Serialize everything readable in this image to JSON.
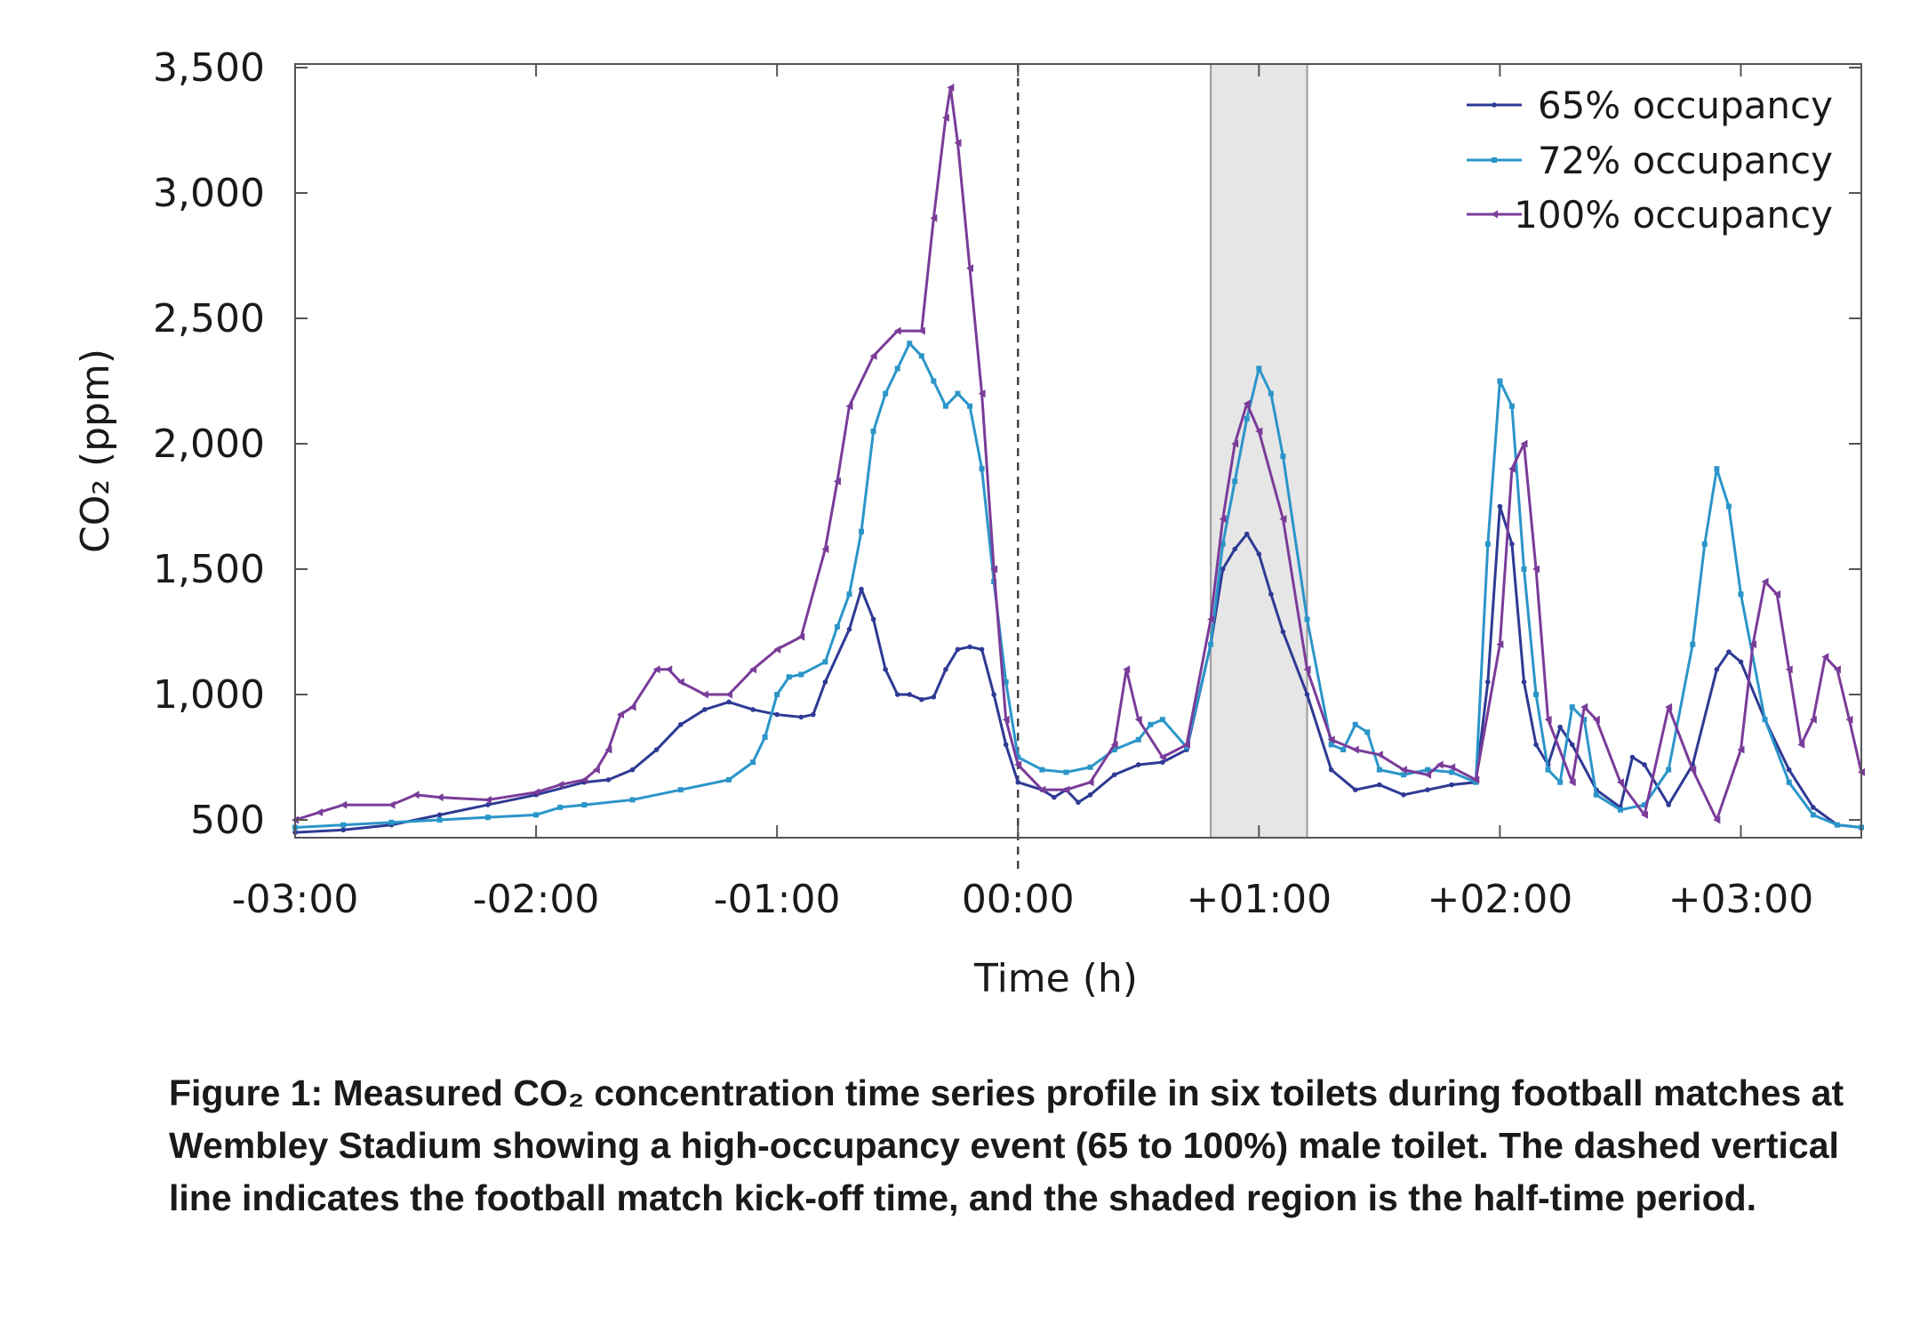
{
  "chart_data": {
    "type": "line",
    "xlabel": "Time (h)",
    "ylabel": "CO₂ (ppm)",
    "xlim": [
      -3.0,
      3.5
    ],
    "ylim": [
      450,
      3500
    ],
    "x_ticks": [
      {
        "v": -3,
        "label": "-03:00"
      },
      {
        "v": -2,
        "label": "-02:00"
      },
      {
        "v": -1,
        "label": "-01:00"
      },
      {
        "v": 0,
        "label": "00:00"
      },
      {
        "v": 1,
        "label": "+01:00"
      },
      {
        "v": 2,
        "label": "+02:00"
      },
      {
        "v": 3,
        "label": "+03:00"
      }
    ],
    "y_ticks": [
      {
        "v": 500,
        "label": "500"
      },
      {
        "v": 1000,
        "label": "1,000"
      },
      {
        "v": 1500,
        "label": "1,500"
      },
      {
        "v": 2000,
        "label": "2,000"
      },
      {
        "v": 2500,
        "label": "2,500"
      },
      {
        "v": 3000,
        "label": "3,000"
      },
      {
        "v": 3500,
        "label": "3,500"
      }
    ],
    "kickoff_x": 0,
    "halftime_region": [
      0.8,
      1.2
    ],
    "legend_position": "top-right",
    "series": [
      {
        "name": "65% occupancy",
        "color": "#2e3a94",
        "marker": "dot",
        "points": [
          [
            -3.0,
            450
          ],
          [
            -2.8,
            460
          ],
          [
            -2.6,
            480
          ],
          [
            -2.4,
            520
          ],
          [
            -2.2,
            560
          ],
          [
            -2.0,
            600
          ],
          [
            -1.8,
            650
          ],
          [
            -1.7,
            660
          ],
          [
            -1.6,
            700
          ],
          [
            -1.5,
            780
          ],
          [
            -1.4,
            880
          ],
          [
            -1.3,
            940
          ],
          [
            -1.2,
            970
          ],
          [
            -1.1,
            940
          ],
          [
            -1.0,
            920
          ],
          [
            -0.9,
            910
          ],
          [
            -0.85,
            920
          ],
          [
            -0.8,
            1050
          ],
          [
            -0.7,
            1260
          ],
          [
            -0.65,
            1420
          ],
          [
            -0.6,
            1300
          ],
          [
            -0.55,
            1100
          ],
          [
            -0.5,
            1000
          ],
          [
            -0.45,
            1000
          ],
          [
            -0.4,
            980
          ],
          [
            -0.35,
            990
          ],
          [
            -0.3,
            1100
          ],
          [
            -0.25,
            1180
          ],
          [
            -0.2,
            1190
          ],
          [
            -0.15,
            1180
          ],
          [
            -0.1,
            1000
          ],
          [
            -0.05,
            800
          ],
          [
            0.0,
            650
          ],
          [
            0.1,
            620
          ],
          [
            0.15,
            590
          ],
          [
            0.2,
            620
          ],
          [
            0.25,
            570
          ],
          [
            0.3,
            600
          ],
          [
            0.4,
            680
          ],
          [
            0.5,
            720
          ],
          [
            0.6,
            730
          ],
          [
            0.7,
            780
          ],
          [
            0.8,
            1200
          ],
          [
            0.85,
            1500
          ],
          [
            0.9,
            1580
          ],
          [
            0.95,
            1640
          ],
          [
            1.0,
            1560
          ],
          [
            1.05,
            1400
          ],
          [
            1.1,
            1250
          ],
          [
            1.2,
            1000
          ],
          [
            1.3,
            700
          ],
          [
            1.4,
            620
          ],
          [
            1.5,
            640
          ],
          [
            1.6,
            600
          ],
          [
            1.7,
            620
          ],
          [
            1.8,
            640
          ],
          [
            1.9,
            650
          ],
          [
            1.95,
            1050
          ],
          [
            2.0,
            1750
          ],
          [
            2.05,
            1600
          ],
          [
            2.1,
            1050
          ],
          [
            2.15,
            800
          ],
          [
            2.2,
            720
          ],
          [
            2.25,
            870
          ],
          [
            2.3,
            800
          ],
          [
            2.4,
            620
          ],
          [
            2.5,
            550
          ],
          [
            2.55,
            750
          ],
          [
            2.6,
            720
          ],
          [
            2.7,
            560
          ],
          [
            2.8,
            720
          ],
          [
            2.9,
            1100
          ],
          [
            2.95,
            1170
          ],
          [
            3.0,
            1130
          ],
          [
            3.1,
            900
          ],
          [
            3.2,
            700
          ],
          [
            3.3,
            550
          ],
          [
            3.4,
            480
          ],
          [
            3.5,
            470
          ]
        ]
      },
      {
        "name": "72% occupancy",
        "color": "#2b95c9",
        "marker": "square",
        "points": [
          [
            -3.0,
            470
          ],
          [
            -2.8,
            480
          ],
          [
            -2.6,
            490
          ],
          [
            -2.4,
            500
          ],
          [
            -2.2,
            510
          ],
          [
            -2.0,
            520
          ],
          [
            -1.9,
            550
          ],
          [
            -1.8,
            560
          ],
          [
            -1.6,
            580
          ],
          [
            -1.4,
            620
          ],
          [
            -1.2,
            660
          ],
          [
            -1.1,
            730
          ],
          [
            -1.05,
            830
          ],
          [
            -1.0,
            1000
          ],
          [
            -0.95,
            1070
          ],
          [
            -0.9,
            1080
          ],
          [
            -0.8,
            1130
          ],
          [
            -0.75,
            1270
          ],
          [
            -0.7,
            1400
          ],
          [
            -0.65,
            1650
          ],
          [
            -0.6,
            2050
          ],
          [
            -0.55,
            2200
          ],
          [
            -0.5,
            2300
          ],
          [
            -0.45,
            2400
          ],
          [
            -0.4,
            2350
          ],
          [
            -0.35,
            2250
          ],
          [
            -0.3,
            2150
          ],
          [
            -0.25,
            2200
          ],
          [
            -0.2,
            2150
          ],
          [
            -0.15,
            1900
          ],
          [
            -0.1,
            1450
          ],
          [
            -0.05,
            1050
          ],
          [
            0.0,
            750
          ],
          [
            0.1,
            700
          ],
          [
            0.2,
            690
          ],
          [
            0.3,
            710
          ],
          [
            0.4,
            780
          ],
          [
            0.5,
            820
          ],
          [
            0.55,
            880
          ],
          [
            0.6,
            900
          ],
          [
            0.7,
            790
          ],
          [
            0.8,
            1200
          ],
          [
            0.85,
            1600
          ],
          [
            0.9,
            1850
          ],
          [
            0.95,
            2100
          ],
          [
            1.0,
            2300
          ],
          [
            1.05,
            2200
          ],
          [
            1.1,
            1950
          ],
          [
            1.2,
            1300
          ],
          [
            1.3,
            800
          ],
          [
            1.35,
            780
          ],
          [
            1.4,
            880
          ],
          [
            1.45,
            850
          ],
          [
            1.5,
            700
          ],
          [
            1.6,
            680
          ],
          [
            1.7,
            700
          ],
          [
            1.8,
            690
          ],
          [
            1.9,
            650
          ],
          [
            1.95,
            1600
          ],
          [
            2.0,
            2250
          ],
          [
            2.05,
            2150
          ],
          [
            2.1,
            1500
          ],
          [
            2.15,
            1000
          ],
          [
            2.2,
            700
          ],
          [
            2.25,
            650
          ],
          [
            2.3,
            950
          ],
          [
            2.35,
            900
          ],
          [
            2.4,
            600
          ],
          [
            2.5,
            540
          ],
          [
            2.6,
            560
          ],
          [
            2.7,
            700
          ],
          [
            2.8,
            1200
          ],
          [
            2.85,
            1600
          ],
          [
            2.9,
            1900
          ],
          [
            2.95,
            1750
          ],
          [
            3.0,
            1400
          ],
          [
            3.1,
            900
          ],
          [
            3.2,
            650
          ],
          [
            3.3,
            520
          ],
          [
            3.4,
            480
          ],
          [
            3.5,
            470
          ]
        ]
      },
      {
        "name": "100% occupancy",
        "color": "#7a3c99",
        "marker": "triangle",
        "points": [
          [
            -3.0,
            500
          ],
          [
            -2.9,
            530
          ],
          [
            -2.8,
            560
          ],
          [
            -2.6,
            560
          ],
          [
            -2.5,
            600
          ],
          [
            -2.4,
            590
          ],
          [
            -2.2,
            580
          ],
          [
            -2.0,
            610
          ],
          [
            -1.9,
            640
          ],
          [
            -1.8,
            660
          ],
          [
            -1.75,
            700
          ],
          [
            -1.7,
            780
          ],
          [
            -1.65,
            920
          ],
          [
            -1.6,
            950
          ],
          [
            -1.5,
            1100
          ],
          [
            -1.45,
            1100
          ],
          [
            -1.4,
            1050
          ],
          [
            -1.3,
            1000
          ],
          [
            -1.2,
            1000
          ],
          [
            -1.1,
            1100
          ],
          [
            -1.0,
            1180
          ],
          [
            -0.9,
            1230
          ],
          [
            -0.8,
            1580
          ],
          [
            -0.75,
            1850
          ],
          [
            -0.7,
            2150
          ],
          [
            -0.6,
            2350
          ],
          [
            -0.5,
            2450
          ],
          [
            -0.4,
            2450
          ],
          [
            -0.35,
            2900
          ],
          [
            -0.3,
            3300
          ],
          [
            -0.28,
            3420
          ],
          [
            -0.25,
            3200
          ],
          [
            -0.2,
            2700
          ],
          [
            -0.15,
            2200
          ],
          [
            -0.1,
            1500
          ],
          [
            -0.05,
            900
          ],
          [
            0.0,
            720
          ],
          [
            0.1,
            620
          ],
          [
            0.2,
            620
          ],
          [
            0.3,
            650
          ],
          [
            0.4,
            800
          ],
          [
            0.45,
            1100
          ],
          [
            0.5,
            900
          ],
          [
            0.6,
            750
          ],
          [
            0.7,
            800
          ],
          [
            0.8,
            1300
          ],
          [
            0.85,
            1700
          ],
          [
            0.9,
            2000
          ],
          [
            0.95,
            2160
          ],
          [
            1.0,
            2050
          ],
          [
            1.1,
            1700
          ],
          [
            1.2,
            1100
          ],
          [
            1.3,
            820
          ],
          [
            1.4,
            780
          ],
          [
            1.5,
            760
          ],
          [
            1.6,
            700
          ],
          [
            1.7,
            680
          ],
          [
            1.75,
            720
          ],
          [
            1.8,
            710
          ],
          [
            1.9,
            660
          ],
          [
            2.0,
            1200
          ],
          [
            2.05,
            1900
          ],
          [
            2.1,
            2000
          ],
          [
            2.15,
            1500
          ],
          [
            2.2,
            900
          ],
          [
            2.3,
            650
          ],
          [
            2.35,
            950
          ],
          [
            2.4,
            900
          ],
          [
            2.5,
            650
          ],
          [
            2.6,
            520
          ],
          [
            2.7,
            950
          ],
          [
            2.8,
            700
          ],
          [
            2.9,
            500
          ],
          [
            3.0,
            780
          ],
          [
            3.05,
            1200
          ],
          [
            3.1,
            1450
          ],
          [
            3.15,
            1400
          ],
          [
            3.2,
            1100
          ],
          [
            3.25,
            800
          ],
          [
            3.3,
            900
          ],
          [
            3.35,
            1150
          ],
          [
            3.4,
            1100
          ],
          [
            3.45,
            900
          ],
          [
            3.5,
            690
          ]
        ]
      }
    ]
  },
  "caption": {
    "text": "Figure 1: Measured CO₂ concentration time series profile in six toilets during football matches at Wembley Stadium showing a  high-occupancy event (65 to 100%) male toilet. The dashed vertical line indicates the football match kick-off time, and the shaded region is the half-time period."
  }
}
